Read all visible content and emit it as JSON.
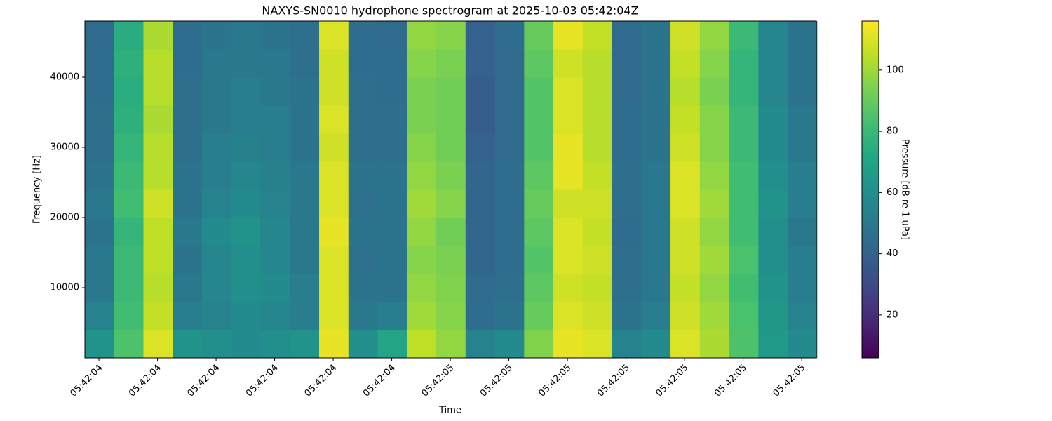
{
  "chart_data": {
    "type": "heatmap",
    "title": "NAXYS-SN0010 hydrophone spectrogram at 2025-10-03 05:42:04Z",
    "xlabel": "Time",
    "ylabel": "Frequency [Hz]",
    "colorbar_label": "Pressure [dB re 1 uPa]",
    "colormap": "viridis",
    "x": [
      4.401,
      4.451,
      4.501,
      4.551,
      4.601,
      4.651,
      4.701,
      4.751,
      4.801,
      4.851,
      4.901,
      4.951,
      5.001,
      5.051,
      5.101,
      5.151,
      5.201,
      5.251,
      5.301,
      5.351,
      5.401,
      5.451,
      5.501,
      5.551,
      5.601
    ],
    "y": [
      2000,
      6000,
      10000,
      14000,
      18000,
      22000,
      26000,
      30000,
      34000,
      38000,
      42000,
      46000
    ],
    "z": [
      [
        62,
        85,
        110,
        62,
        60,
        58,
        60,
        62,
        112,
        60,
        70,
        105,
        98,
        55,
        58,
        95,
        112,
        110,
        55,
        58,
        110,
        102,
        85,
        65,
        58
      ],
      [
        55,
        82,
        106,
        52,
        55,
        58,
        56,
        52,
        110,
        50,
        52,
        100,
        96,
        45,
        48,
        90,
        110,
        108,
        48,
        52,
        108,
        100,
        84,
        64,
        55
      ],
      [
        50,
        80,
        104,
        50,
        56,
        60,
        58,
        52,
        110,
        48,
        48,
        98,
        95,
        44,
        46,
        88,
        108,
        106,
        46,
        50,
        106,
        98,
        82,
        62,
        52
      ],
      [
        50,
        80,
        105,
        48,
        56,
        60,
        56,
        50,
        110,
        47,
        48,
        96,
        94,
        42,
        45,
        86,
        110,
        108,
        46,
        50,
        108,
        100,
        84,
        60,
        52
      ],
      [
        48,
        78,
        105,
        50,
        58,
        62,
        56,
        50,
        112,
        48,
        48,
        98,
        92,
        42,
        45,
        88,
        110,
        106,
        45,
        50,
        108,
        98,
        82,
        60,
        50
      ],
      [
        50,
        82,
        108,
        48,
        55,
        58,
        55,
        50,
        110,
        47,
        48,
        100,
        96,
        42,
        45,
        90,
        108,
        108,
        46,
        50,
        110,
        100,
        82,
        62,
        52
      ],
      [
        48,
        80,
        104,
        48,
        52,
        56,
        54,
        50,
        110,
        48,
        48,
        98,
        94,
        42,
        45,
        88,
        112,
        106,
        46,
        50,
        110,
        98,
        82,
        60,
        52
      ],
      [
        46,
        78,
        104,
        46,
        52,
        54,
        52,
        48,
        108,
        46,
        46,
        96,
        92,
        40,
        44,
        86,
        112,
        104,
        45,
        48,
        108,
        96,
        80,
        58,
        50
      ],
      [
        46,
        76,
        102,
        46,
        50,
        52,
        52,
        48,
        110,
        46,
        46,
        94,
        92,
        38,
        44,
        86,
        110,
        104,
        45,
        48,
        106,
        96,
        80,
        58,
        50
      ],
      [
        45,
        75,
        104,
        46,
        50,
        52,
        50,
        48,
        108,
        46,
        45,
        94,
        92,
        38,
        44,
        86,
        110,
        104,
        44,
        48,
        104,
        94,
        78,
        56,
        48
      ],
      [
        45,
        76,
        104,
        45,
        50,
        50,
        50,
        46,
        108,
        45,
        45,
        96,
        94,
        40,
        44,
        88,
        108,
        104,
        44,
        48,
        106,
        96,
        78,
        56,
        48
      ],
      [
        44,
        74,
        102,
        45,
        48,
        50,
        48,
        46,
        110,
        45,
        44,
        98,
        96,
        40,
        45,
        90,
        112,
        106,
        44,
        48,
        108,
        98,
        80,
        56,
        48
      ]
    ],
    "xlim": [
      4.376,
      5.625
    ],
    "xticks": [
      {
        "value": 4.4,
        "label": "05:42:04"
      },
      {
        "value": 4.5,
        "label": "05:42:04"
      },
      {
        "value": 4.6,
        "label": "05:42:04"
      },
      {
        "value": 4.7,
        "label": "05:42:04"
      },
      {
        "value": 4.8,
        "label": "05:42:04"
      },
      {
        "value": 4.9,
        "label": "05:42:04"
      },
      {
        "value": 5.0,
        "label": "05:42:05"
      },
      {
        "value": 5.1,
        "label": "05:42:05"
      },
      {
        "value": 5.2,
        "label": "05:42:05"
      },
      {
        "value": 5.3,
        "label": "05:42:05"
      },
      {
        "value": 5.4,
        "label": "05:42:05"
      },
      {
        "value": 5.5,
        "label": "05:42:05"
      },
      {
        "value": 5.6,
        "label": "05:42:05"
      }
    ],
    "ylim": [
      0,
      48000
    ],
    "yticks": [
      10000,
      20000,
      30000,
      40000
    ],
    "clim": [
      6,
      116
    ],
    "cticks": [
      20,
      40,
      60,
      80,
      100
    ]
  }
}
